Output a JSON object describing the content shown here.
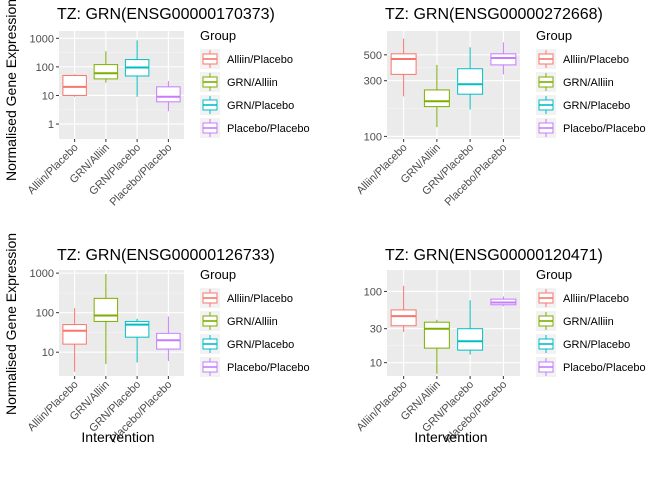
{
  "ylabel": "Normalised Gene Expression",
  "xlabel": "Intervention",
  "legend": {
    "title": "Group",
    "entries": [
      {
        "label": "Alliin/Placebo",
        "color": "#F8766D"
      },
      {
        "label": "GRN/Alliin",
        "color": "#7CAE00"
      },
      {
        "label": "GRN/Placebo",
        "color": "#00BFC4"
      },
      {
        "label": "Placebo/Placebo",
        "color": "#C77CFF"
      }
    ]
  },
  "chart_data": [
    {
      "type": "boxplot",
      "title": "TZ: GRN(ENSG00000170373)",
      "y_scale": "log10",
      "ylim": [
        0.3,
        1800
      ],
      "y_ticks": [
        1,
        10,
        100,
        1000
      ],
      "y_tick_labels": [
        "1",
        "10",
        "100",
        "1000"
      ],
      "categories": [
        "Alliin/Placebo",
        "GRN/Alliin",
        "GRN/Placebo",
        "Placebo/Placebo"
      ],
      "boxes": [
        {
          "min": 9,
          "q1": 10,
          "median": 20,
          "q3": 50,
          "max": 55
        },
        {
          "min": 28,
          "q1": 38,
          "median": 60,
          "q3": 120,
          "max": 350
        },
        {
          "min": 9,
          "q1": 48,
          "median": 95,
          "q3": 180,
          "max": 850
        },
        {
          "min": 2.8,
          "q1": 6,
          "median": 9,
          "q3": 20,
          "max": 32
        }
      ]
    },
    {
      "type": "boxplot",
      "title": "TZ: GRN(ENSG00000272668)",
      "y_scale": "log10",
      "ylim": [
        95,
        800
      ],
      "y_ticks": [
        100,
        300,
        500
      ],
      "y_tick_labels": [
        "100",
        "300",
        "500"
      ],
      "categories": [
        "Alliin/Placebo",
        "GRN/Alliin",
        "GRN/Placebo",
        "Placebo/Placebo"
      ],
      "boxes": [
        {
          "min": 220,
          "q1": 340,
          "median": 460,
          "q3": 510,
          "max": 690
        },
        {
          "min": 120,
          "q1": 180,
          "median": 200,
          "q3": 250,
          "max": 410
        },
        {
          "min": 170,
          "q1": 230,
          "median": 280,
          "q3": 380,
          "max": 580
        },
        {
          "min": 340,
          "q1": 410,
          "median": 470,
          "q3": 510,
          "max": 640
        }
      ]
    },
    {
      "type": "boxplot",
      "title": "TZ: GRN(ENSG00000126733)",
      "y_scale": "log10",
      "ylim": [
        2.5,
        1200
      ],
      "y_ticks": [
        10,
        100,
        1000
      ],
      "y_tick_labels": [
        "10",
        "100",
        "1000"
      ],
      "categories": [
        "Alliin/Placebo",
        "GRN/Alliin",
        "GRN/Placebo",
        "Placebo/Placebo"
      ],
      "boxes": [
        {
          "min": 3.2,
          "q1": 16,
          "median": 35,
          "q3": 50,
          "max": 130
        },
        {
          "min": 5,
          "q1": 60,
          "median": 85,
          "q3": 230,
          "max": 950
        },
        {
          "min": 5.5,
          "q1": 24,
          "median": 50,
          "q3": 60,
          "max": 70
        },
        {
          "min": 6,
          "q1": 12,
          "median": 20,
          "q3": 30,
          "max": 80
        }
      ]
    },
    {
      "type": "boxplot",
      "title": "TZ: GRN(ENSG00000120471)",
      "y_scale": "log10",
      "ylim": [
        6.5,
        200
      ],
      "y_ticks": [
        10,
        30,
        100
      ],
      "y_tick_labels": [
        "10",
        "30",
        "100"
      ],
      "categories": [
        "Alliin/Placebo",
        "GRN/Alliin",
        "GRN/Placebo",
        "Placebo/Placebo"
      ],
      "boxes": [
        {
          "min": 27,
          "q1": 33,
          "median": 45,
          "q3": 55,
          "max": 120
        },
        {
          "min": 7,
          "q1": 16,
          "median": 30,
          "q3": 37,
          "max": 40
        },
        {
          "min": 13,
          "q1": 15,
          "median": 20,
          "q3": 30,
          "max": 75
        },
        {
          "min": 62,
          "q1": 65,
          "median": 70,
          "q3": 78,
          "max": 85
        }
      ]
    }
  ]
}
